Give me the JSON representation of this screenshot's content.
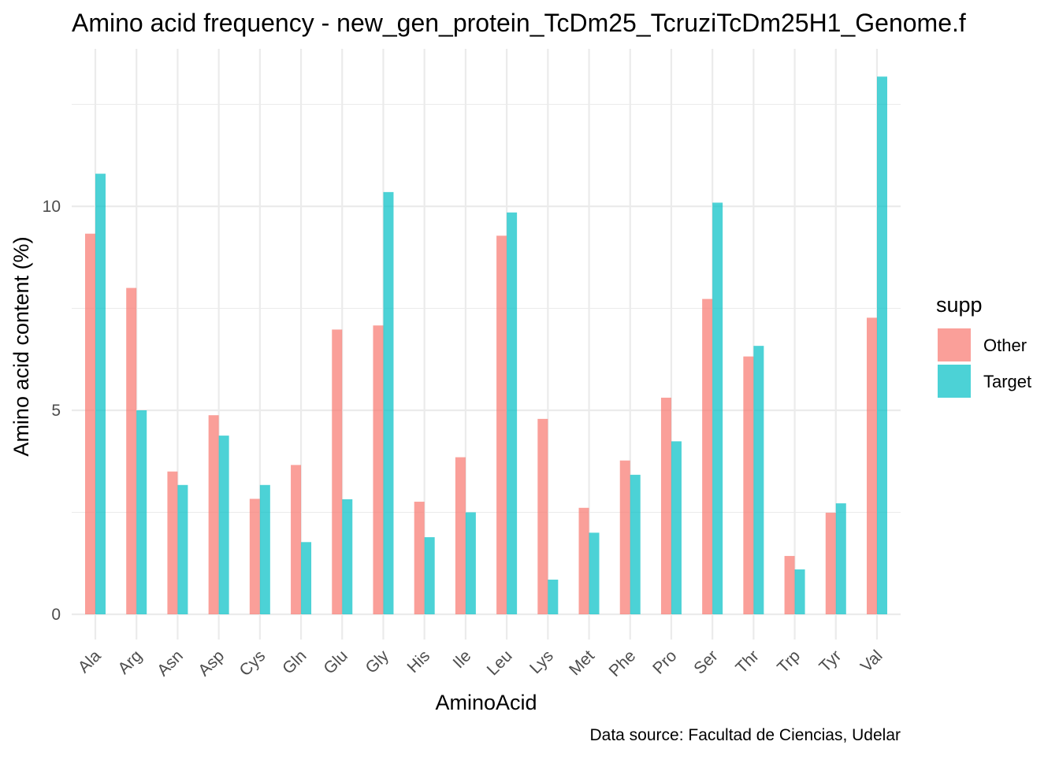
{
  "chart_data": {
    "type": "bar",
    "title": "Amino acid frequency - new_gen_protein_TcDm25_TcruziTcDm25H1_Genome.f",
    "xlabel": "AminoAcid",
    "ylabel": "Amino acid content (%)",
    "caption": "Data source: Facultad de Ciencias, Udelar",
    "legend_title": "supp",
    "legend_position": "right",
    "grid": true,
    "ylim": [
      -0.5,
      13.8
    ],
    "y_ticks": [
      "0",
      "5",
      "10"
    ],
    "categories": [
      "Ala",
      "Arg",
      "Asn",
      "Asp",
      "Cys",
      "Gln",
      "Glu",
      "Gly",
      "His",
      "Ile",
      "Leu",
      "Lys",
      "Met",
      "Phe",
      "Pro",
      "Ser",
      "Thr",
      "Trp",
      "Tyr",
      "Val"
    ],
    "series": [
      {
        "name": "Other",
        "color": "#F8766D",
        "values": [
          9.33,
          8.0,
          3.5,
          4.88,
          2.83,
          3.66,
          6.98,
          7.08,
          2.76,
          3.85,
          9.28,
          4.79,
          2.61,
          3.77,
          5.31,
          7.73,
          6.32,
          1.43,
          2.49,
          7.27
        ]
      },
      {
        "name": "Target",
        "color": "#00BFC4",
        "values": [
          10.8,
          5.0,
          3.17,
          4.38,
          3.17,
          1.77,
          2.82,
          10.35,
          1.89,
          2.5,
          9.85,
          0.85,
          2.0,
          3.42,
          4.24,
          10.09,
          6.58,
          1.1,
          2.72,
          13.18
        ]
      }
    ]
  }
}
